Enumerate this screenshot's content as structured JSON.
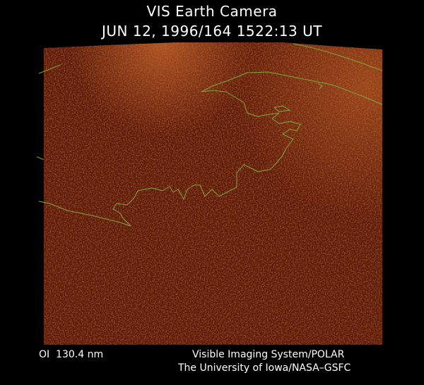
{
  "header": {
    "title": "VIS Earth Camera",
    "subtitle": "JUN 12, 1996/164 1522:13 UT"
  },
  "footer": {
    "left": "OI  130.4 nm",
    "right": [
      "Visible Imaging System/POLAR",
      "The University of Iowa/NASA–GSFC"
    ]
  }
}
